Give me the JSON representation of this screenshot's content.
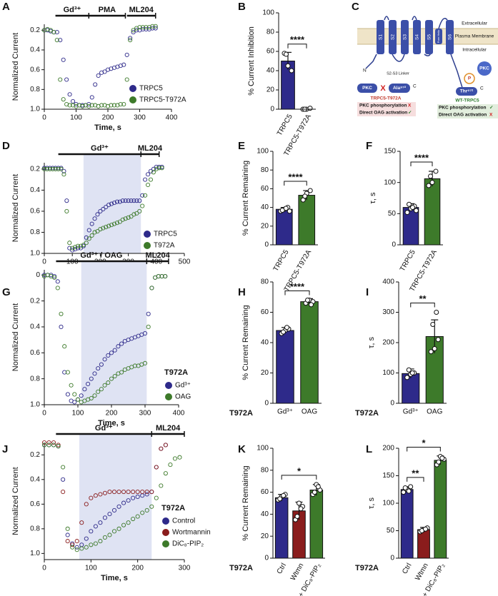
{
  "chart_data": [
    {
      "type": "scatter",
      "panel": "A",
      "xlabel": "Time, s",
      "ylabel": "Normalized Current",
      "x": [
        0,
        10,
        20,
        30,
        40,
        50,
        60,
        70,
        80,
        90,
        100,
        110,
        120,
        130,
        140,
        150,
        160,
        170,
        180,
        190,
        200,
        210,
        220,
        230,
        240,
        250,
        260,
        270,
        280,
        290,
        300,
        310,
        320,
        330,
        340,
        350
      ],
      "series": [
        {
          "name": "TRPC5",
          "color": "#2e2a8a",
          "values": [
            0.2,
            0.2,
            0.21,
            0.22,
            0.22,
            0.3,
            0.5,
            0.7,
            0.85,
            0.92,
            0.95,
            0.96,
            0.96,
            0.96,
            0.95,
            0.88,
            0.75,
            0.66,
            0.63,
            0.62,
            0.6,
            0.59,
            0.58,
            0.57,
            0.56,
            0.55,
            0.45,
            0.28,
            0.22,
            0.2,
            0.2,
            0.19,
            0.19,
            0.19,
            0.18,
            0.18
          ]
        },
        {
          "name": "TRPC5-T972A",
          "color": "#3d7a2a",
          "values": [
            0.2,
            0.19,
            0.2,
            0.22,
            0.3,
            0.7,
            0.9,
            0.95,
            0.96,
            0.96,
            0.97,
            0.96,
            0.97,
            0.96,
            0.97,
            0.96,
            0.96,
            0.97,
            0.96,
            0.96,
            0.97,
            0.96,
            0.96,
            0.96,
            0.95,
            0.95,
            0.7,
            0.3,
            0.2,
            0.18,
            0.17,
            0.17,
            0.17,
            0.17,
            0.16,
            0.16
          ]
        }
      ],
      "xlim": [
        0,
        400
      ],
      "xticks": [
        0,
        100,
        200,
        300,
        400
      ],
      "ylim": [
        1.0,
        0.14
      ],
      "yticks": [
        0.2,
        0.4,
        0.6,
        0.8,
        {
          "value": 1,
          "label": "1.0"
        }
      ],
      "periods": [
        {
          "label": "Gd³⁺",
          "start": 35,
          "end": 140
        },
        {
          "label": "PMA",
          "start": 140,
          "end": 255
        },
        {
          "label": "ML204",
          "start": 260,
          "end": 350
        }
      ]
    },
    {
      "type": "bar",
      "panel": "B",
      "ylabel": "% Current Inhibition",
      "categories": [
        "TRPC5",
        "TRPC5-T972A"
      ],
      "values": [
        50,
        0
      ],
      "errors": [
        9,
        1
      ],
      "points": [
        [
          58,
          45,
          40,
          57
        ],
        [
          0,
          0,
          1,
          0
        ]
      ],
      "colors": [
        "#2e2a8a",
        "#3d7a2a"
      ],
      "ylim": [
        0,
        100
      ],
      "yticks": [
        0,
        20,
        40,
        60,
        80,
        100
      ],
      "brackets": [
        {
          "label": "****",
          "from": 0,
          "to": 1
        }
      ]
    },
    {
      "type": "scatter",
      "panel": "D",
      "xlabel": "Time, s",
      "ylabel": "Normalized Current",
      "x": [
        0,
        10,
        20,
        30,
        40,
        50,
        60,
        70,
        80,
        90,
        100,
        110,
        120,
        130,
        140,
        150,
        160,
        170,
        180,
        190,
        200,
        210,
        220,
        230,
        240,
        250,
        260,
        270,
        280,
        290,
        300,
        310,
        320,
        330,
        340,
        350,
        360,
        370,
        380,
        390,
        400,
        410,
        420
      ],
      "series": [
        {
          "name": "TRPC5",
          "color": "#2e2a8a",
          "values": [
            0.19,
            0.19,
            0.19,
            0.19,
            0.19,
            0.19,
            0.19,
            0.22,
            0.5,
            0.95,
            0.97,
            0.96,
            0.95,
            0.95,
            0.93,
            0.85,
            0.78,
            0.72,
            0.67,
            0.63,
            0.6,
            0.58,
            0.56,
            0.54,
            0.53,
            0.52,
            0.51,
            0.51,
            0.5,
            0.5,
            0.5,
            0.5,
            0.5,
            0.5,
            0.5,
            0.45,
            0.3,
            0.25,
            0.22,
            0.2,
            0.18,
            0.18,
            0.18
          ]
        },
        {
          "name": "T972A",
          "color": "#3d7a2a",
          "values": [
            0.2,
            0.2,
            0.2,
            0.2,
            0.2,
            0.2,
            0.2,
            0.25,
            0.6,
            0.9,
            0.95,
            0.94,
            0.93,
            0.93,
            0.92,
            0.9,
            0.86,
            0.83,
            0.8,
            0.79,
            0.77,
            0.76,
            0.75,
            0.74,
            0.73,
            0.72,
            0.71,
            0.7,
            0.68,
            0.67,
            0.66,
            0.65,
            0.63,
            0.62,
            0.6,
            0.55,
            0.45,
            0.35,
            0.3,
            0.23,
            0.2,
            0.19,
            0.19
          ]
        }
      ],
      "xlim": [
        0,
        500
      ],
      "xticks": [
        0,
        100,
        200,
        300,
        400,
        500
      ],
      "ylim": [
        1.0,
        0.14
      ],
      "yticks": [
        0.2,
        0.4,
        0.6,
        0.8,
        {
          "value": 1,
          "label": "1.0"
        }
      ],
      "periods": [
        {
          "label": "Gd³⁺",
          "start": 50,
          "end": 345
        },
        {
          "label": "ML204",
          "start": 345,
          "end": 410
        }
      ],
      "shade": [
        140,
        345
      ]
    },
    {
      "type": "bar",
      "panel": "E",
      "ylabel": "% Current Remaining",
      "categories": [
        "TRPC5",
        "TRPC5-T972A"
      ],
      "values": [
        38,
        53
      ],
      "errors": [
        2,
        5
      ],
      "points": [
        [
          36,
          38,
          40,
          37,
          39,
          36
        ],
        [
          48,
          55,
          58,
          52
        ]
      ],
      "colors": [
        "#2e2a8a",
        "#3d7a2a"
      ],
      "ylim": [
        0,
        100
      ],
      "yticks": [
        0,
        20,
        40,
        60,
        80,
        100
      ],
      "brackets": [
        {
          "label": "****",
          "from": 0,
          "to": 1
        }
      ]
    },
    {
      "type": "bar",
      "panel": "F",
      "ylabel": "τ, s",
      "categories": [
        "TRPC5",
        "TRPC5-T972A"
      ],
      "values": [
        60,
        106
      ],
      "errors": [
        6,
        12
      ],
      "points": [
        [
          52,
          58,
          62,
          65,
          60,
          55
        ],
        [
          95,
          100,
          118,
          110
        ]
      ],
      "colors": [
        "#2e2a8a",
        "#3d7a2a"
      ],
      "ylim": [
        0,
        150
      ],
      "yticks": [
        0,
        50,
        100,
        150
      ],
      "brackets": [
        {
          "label": "****",
          "from": 0,
          "to": 1
        }
      ]
    },
    {
      "type": "scatter",
      "panel": "G",
      "xlabel": "Time, s",
      "ylabel": "Normalized Current",
      "legend_title": "T972A",
      "x": [
        0,
        10,
        20,
        30,
        40,
        50,
        60,
        70,
        80,
        90,
        100,
        110,
        120,
        130,
        140,
        150,
        160,
        170,
        180,
        190,
        200,
        210,
        220,
        230,
        240,
        250,
        260,
        270,
        280,
        290,
        300,
        310,
        320,
        330,
        340,
        350,
        360
      ],
      "series": [
        {
          "name": "Gd³⁺",
          "color": "#2e2a8a",
          "values": [
            0,
            0,
            0,
            0.01,
            0.05,
            0.4,
            0.75,
            0.92,
            0.97,
            0.98,
            0.96,
            0.93,
            0.88,
            0.84,
            0.8,
            0.76,
            0.72,
            0.69,
            0.65,
            0.62,
            0.6,
            0.58,
            0.55,
            0.53,
            0.51,
            0.5,
            0.49,
            0.48,
            0.47,
            0.46,
            0.45,
            0.3,
            0.1,
            0.02,
            0.01,
            0.01,
            0.01
          ]
        },
        {
          "name": "OAG",
          "color": "#3d7a2a",
          "values": [
            0.01,
            0,
            0.01,
            0.02,
            0.1,
            0.3,
            0.55,
            0.75,
            0.85,
            0.92,
            0.96,
            0.98,
            0.97,
            0.96,
            0.95,
            0.93,
            0.9,
            0.88,
            0.85,
            0.83,
            0.8,
            0.78,
            0.76,
            0.75,
            0.73,
            0.72,
            0.71,
            0.7,
            0.7,
            0.69,
            0.68,
            0.4,
            0.1,
            0.02,
            0.01,
            0.01,
            0.01
          ]
        }
      ],
      "xlim": [
        0,
        400
      ],
      "xticks": [
        0,
        100,
        200,
        300,
        400
      ],
      "ylim": [
        1.0,
        -0.04
      ],
      "yticks": [
        0,
        0.2,
        0.4,
        0.6,
        0.8,
        {
          "value": 1,
          "label": "1.0"
        }
      ],
      "periods": [
        {
          "label": "Gd³⁺ / OAG",
          "start": 35,
          "end": 305
        },
        {
          "label": "ML204",
          "start": 305,
          "end": 370
        }
      ],
      "shade": [
        110,
        305
      ]
    },
    {
      "type": "bar",
      "panel": "H",
      "ylabel": "% Current Remaining",
      "group_label": "T972A",
      "categories": [
        "Gd³⁺",
        "OAG"
      ],
      "values": [
        48,
        67
      ],
      "errors": [
        2,
        2
      ],
      "points": [
        [
          46,
          48,
          49,
          47,
          50
        ],
        [
          66,
          68,
          67,
          68,
          65
        ]
      ],
      "colors": [
        "#2e2a8a",
        "#3d7a2a"
      ],
      "ylim": [
        0,
        80
      ],
      "yticks": [
        0,
        20,
        40,
        60,
        80
      ],
      "brackets": [
        {
          "label": "****",
          "from": 0,
          "to": 1
        }
      ]
    },
    {
      "type": "bar",
      "panel": "I",
      "ylabel": "τ, s",
      "group_label": "T972A",
      "categories": [
        "Gd³⁺",
        "OAG"
      ],
      "values": [
        98,
        220
      ],
      "errors": [
        15,
        55
      ],
      "points": [
        [
          85,
          95,
          100,
          110,
          100
        ],
        [
          170,
          180,
          210,
          260,
          300
        ]
      ],
      "colors": [
        "#2e2a8a",
        "#3d7a2a"
      ],
      "ylim": [
        0,
        400
      ],
      "yticks": [
        0,
        100,
        200,
        300,
        400
      ],
      "brackets": [
        {
          "label": "**",
          "from": 0,
          "to": 1
        }
      ]
    },
    {
      "type": "scatter",
      "panel": "J",
      "xlabel": "Time, s",
      "ylabel": "Normalized Current",
      "legend_title": "T972A",
      "x": [
        0,
        10,
        20,
        30,
        40,
        50,
        60,
        70,
        80,
        90,
        100,
        110,
        120,
        130,
        140,
        150,
        160,
        170,
        180,
        190,
        200,
        210,
        220,
        230,
        240,
        250,
        260,
        270,
        280,
        290
      ],
      "series": [
        {
          "name": "Control",
          "color": "#2e2a8a",
          "values": [
            0.12,
            0.12,
            0.12,
            0.13,
            0.4,
            0.85,
            0.92,
            0.95,
            0.93,
            0.88,
            0.82,
            0.78,
            0.75,
            0.71,
            0.68,
            0.65,
            0.62,
            0.59,
            0.57,
            0.55,
            0.54,
            0.53,
            0.52,
            0.5,
            0.3,
            0.15,
            0.12,
            null,
            null,
            null
          ]
        },
        {
          "name": "Wortmannin",
          "color": "#8a1c1c",
          "values": [
            0.1,
            0.1,
            0.1,
            0.12,
            0.5,
            0.9,
            0.93,
            0.9,
            0.75,
            0.6,
            0.55,
            0.53,
            0.52,
            0.51,
            0.5,
            0.5,
            0.5,
            0.5,
            0.5,
            0.5,
            0.5,
            0.5,
            0.5,
            0.5,
            0.3,
            0.15,
            0.12,
            null,
            null,
            null
          ]
        },
        {
          "name": "DiC₈-PIP₂",
          "color": "#3d7a2a",
          "values": [
            0.12,
            0.12,
            0.12,
            0.13,
            0.3,
            0.8,
            0.95,
            0.97,
            0.96,
            0.95,
            0.93,
            0.92,
            0.9,
            0.87,
            0.85,
            0.82,
            0.8,
            0.77,
            0.75,
            0.72,
            0.7,
            0.67,
            0.65,
            0.62,
            0.55,
            0.45,
            0.35,
            0.28,
            0.23,
            0.22
          ]
        }
      ],
      "xlim": [
        0,
        300
      ],
      "xticks": [
        0,
        100,
        200,
        300
      ],
      "ylim": [
        1.05,
        0.1
      ],
      "yticks": [
        0.2,
        0.4,
        0.6,
        0.8,
        {
          "value": 1,
          "label": "1.0"
        }
      ],
      "periods": [
        {
          "label": "Gd³⁺",
          "start": 25,
          "end": 230
        },
        {
          "label": "ML204",
          "start": 230,
          "end": 300
        }
      ],
      "shade": [
        75,
        230
      ]
    },
    {
      "type": "bar",
      "panel": "K",
      "ylabel": "% Current Remaining",
      "group_label": "T972A",
      "categories": [
        "Ctrl",
        "Wtmn",
        "+ DiC₈-PIP₂"
      ],
      "values": [
        55,
        43,
        62
      ],
      "errors": [
        3,
        8,
        5
      ],
      "points": [
        [
          53,
          56,
          58,
          54,
          57
        ],
        [
          35,
          50,
          47,
          38,
          45
        ],
        [
          58,
          67,
          62,
          60,
          65
        ]
      ],
      "colors": [
        "#2e2a8a",
        "#8a1c1c",
        "#3d7a2a"
      ],
      "ylim": [
        0,
        100
      ],
      "yticks": [
        0,
        20,
        40,
        60,
        80,
        100
      ],
      "brackets": [
        {
          "label": "*",
          "from": 0,
          "to": 2
        }
      ]
    },
    {
      "type": "bar",
      "panel": "L",
      "ylabel": "τ, s",
      "group_label": "T972A",
      "categories": [
        "Ctrl",
        "Wtmn",
        "+ DiC₈-PIP₂"
      ],
      "values": [
        125,
        52,
        178
      ],
      "errors": [
        5,
        4,
        8
      ],
      "points": [
        [
          120,
          125,
          130,
          128,
          122
        ],
        [
          48,
          52,
          55,
          50,
          53
        ],
        [
          170,
          185,
          180,
          175,
          182
        ]
      ],
      "colors": [
        "#2e2a8a",
        "#8a1c1c",
        "#3d7a2a"
      ],
      "ylim": [
        0,
        200
      ],
      "yticks": [
        0,
        50,
        100,
        150,
        200
      ],
      "brackets": [
        {
          "label": "**",
          "from": 0,
          "to": 1
        },
        {
          "label": "*",
          "from": 0,
          "to": 2
        }
      ]
    }
  ],
  "diagram": {
    "panel": "C",
    "regions": [
      "Extracellular",
      "Plasma Membrane",
      "Intracellular"
    ],
    "segments": [
      "S1",
      "S2",
      "S3",
      "S4",
      "S5",
      "Pore Helix",
      "S6"
    ],
    "n_terminus": "N",
    "c_terminus": "C",
    "linker": "S2-S3 Linker",
    "kinase": "PKC",
    "phospho": "P",
    "residue_wt": "Thr⁹⁷²",
    "residue_mut": "Ala⁹⁷²",
    "mutant": {
      "name": "TRPC5-T972A",
      "rows": [
        [
          "PKC phosphorylation",
          "X"
        ],
        [
          "Direct OAG activation",
          "✓"
        ]
      ]
    },
    "wild_type": {
      "name": "WT-TRPC5",
      "rows": [
        [
          "PKC phosphorylation",
          "✓"
        ],
        [
          "Direct OAG activation",
          "X"
        ]
      ]
    }
  }
}
